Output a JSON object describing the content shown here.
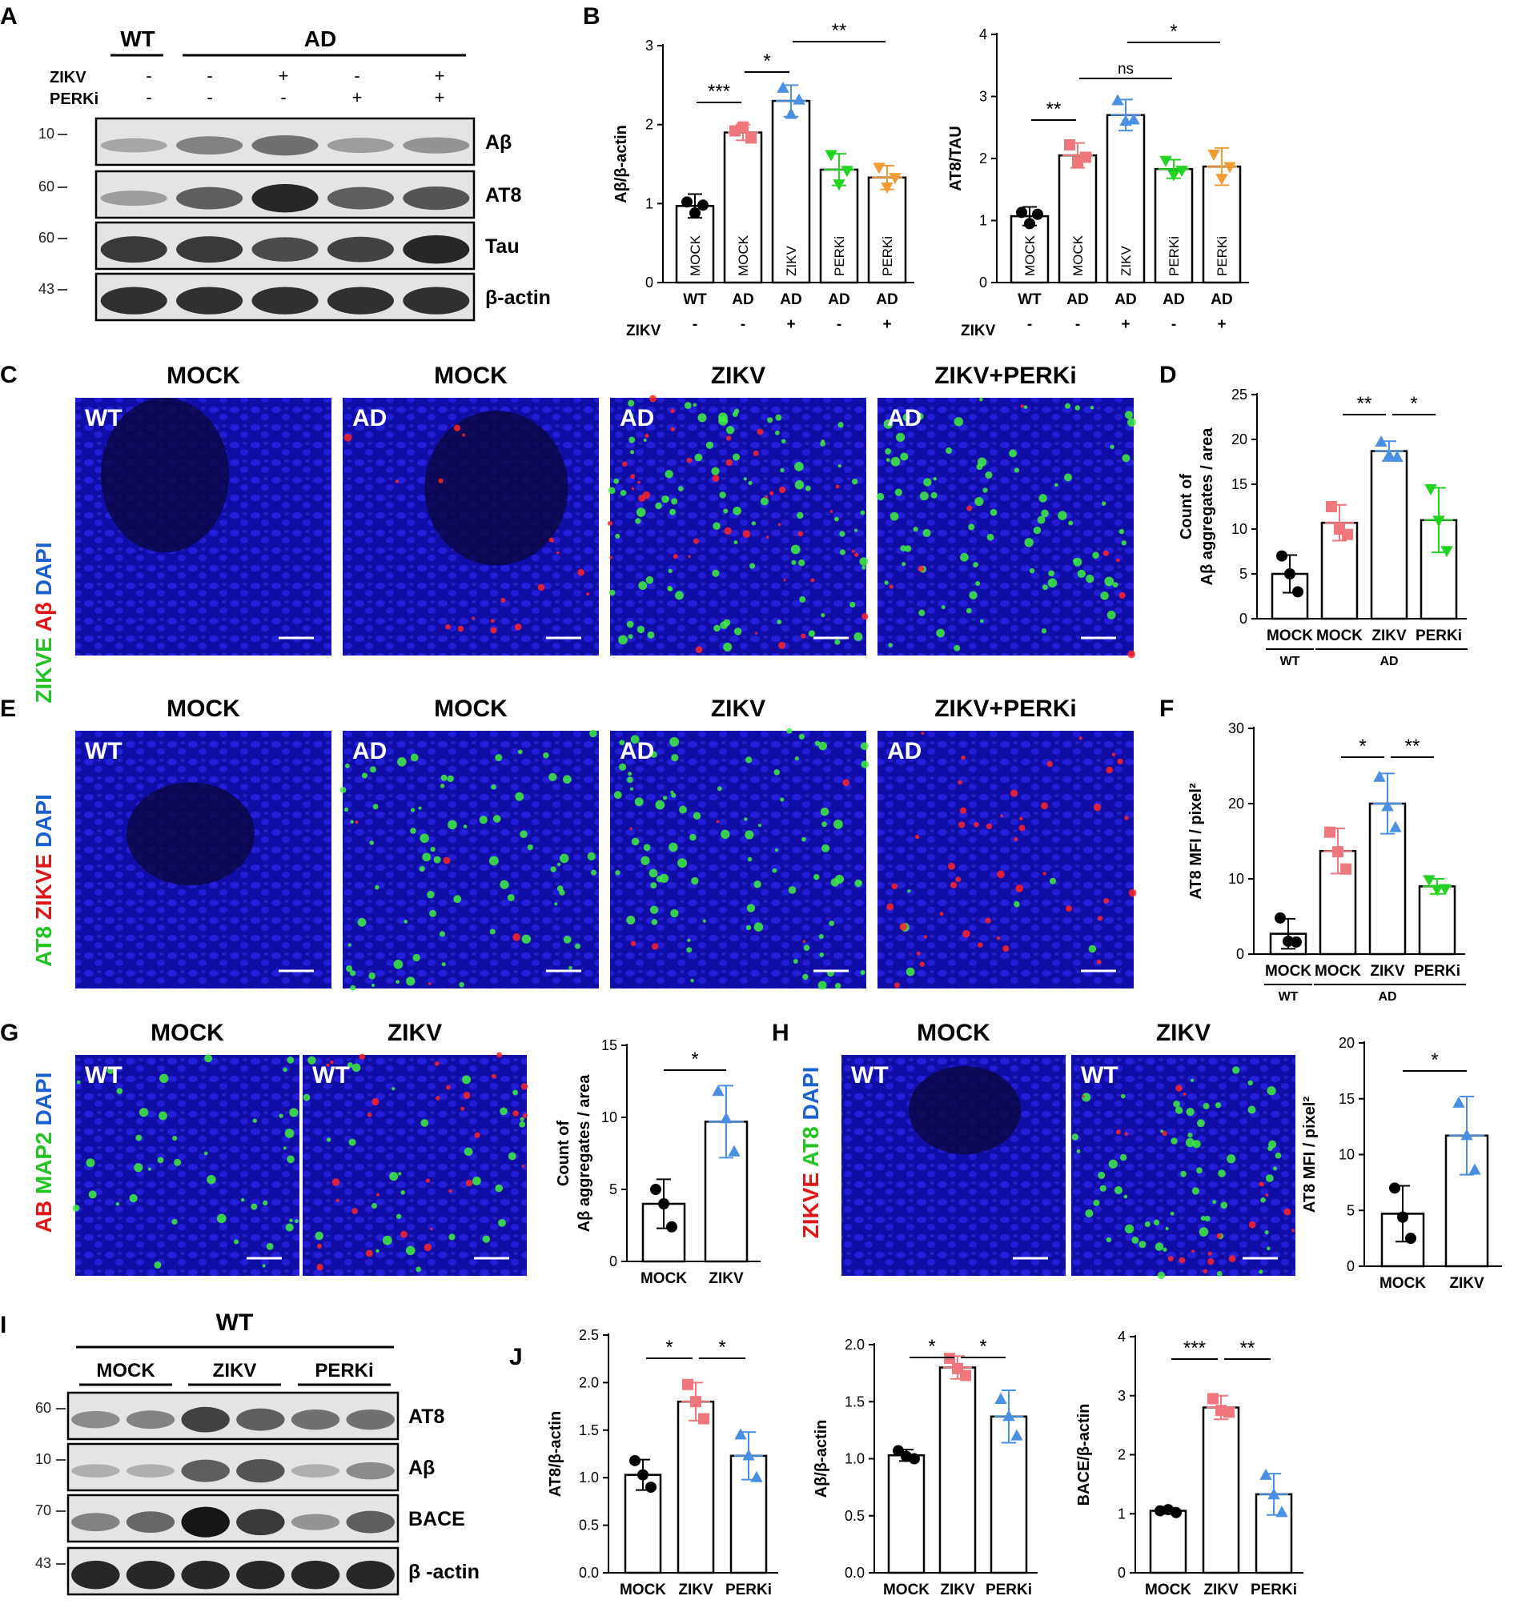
{
  "colors": {
    "WT": "#000000",
    "MOCK": "#f0787c",
    "ZIKV": "#4a90e2",
    "PERKi": "#22d322",
    "PERKi_B": "#f39c34",
    "dapi": "#1a12d8"
  },
  "panelA": {
    "letter": "A",
    "headers": {
      "wt": "WT",
      "ad": "AD"
    },
    "rows": [
      {
        "label": "ZIKV",
        "signs": [
          "-",
          "-",
          "+",
          "-",
          "+"
        ]
      },
      {
        "label": "PERKi",
        "signs": [
          "-",
          "-",
          "-",
          "+",
          "+"
        ]
      }
    ],
    "blots": [
      {
        "label": "Aβ",
        "mw": "10"
      },
      {
        "label": "AT8",
        "mw": "60"
      },
      {
        "label": "Tau",
        "mw": "60"
      },
      {
        "label": "β-actin",
        "mw": "43"
      }
    ]
  },
  "panelB": {
    "letter": "B",
    "zikv_label": "ZIKV"
  },
  "panelC": {
    "letter": "C",
    "stain": [
      "ZIKVE",
      "Aβ",
      "DAPI"
    ],
    "cols": [
      "MOCK",
      "MOCK",
      "ZIKV",
      "ZIKV+PERKi"
    ],
    "tags": [
      "WT",
      "AD",
      "AD",
      "AD"
    ]
  },
  "panelD": {
    "letter": "D",
    "group_wt": "WT",
    "group_ad": "AD"
  },
  "panelE": {
    "letter": "E",
    "stain": [
      "AT8",
      "ZIKVE",
      "DAPI"
    ],
    "cols": [
      "MOCK",
      "MOCK",
      "ZIKV",
      "ZIKV+PERKi"
    ],
    "tags": [
      "WT",
      "AD",
      "AD",
      "AD"
    ]
  },
  "panelF": {
    "letter": "F",
    "group_wt": "WT",
    "group_ad": "AD"
  },
  "panelG": {
    "letter": "G",
    "stain": [
      "AB",
      "MAP2",
      "DAPI"
    ],
    "cols": [
      "MOCK",
      "ZIKV"
    ],
    "tags": [
      "WT",
      "WT"
    ]
  },
  "panelH": {
    "letter": "H",
    "stain": [
      "ZIKVE",
      "AT8",
      "DAPI"
    ],
    "cols": [
      "MOCK",
      "ZIKV"
    ],
    "tags": [
      "WT",
      "WT"
    ]
  },
  "panelI": {
    "letter": "I",
    "header": "WT",
    "groups": [
      "MOCK",
      "ZIKV",
      "PERKi"
    ],
    "blots": [
      {
        "label": "AT8",
        "mw": "60"
      },
      {
        "label": "Aβ",
        "mw": "10"
      },
      {
        "label": "BACE",
        "mw": "70"
      },
      {
        "label": "β -actin",
        "mw": "43"
      }
    ]
  },
  "panelJ": {
    "letter": "J"
  },
  "chart_data": [
    {
      "id": "B1",
      "type": "bar",
      "ylabel": "Aβ/β-actin",
      "ylim": [
        0,
        3
      ],
      "yticks": [
        "0",
        "1",
        "2",
        "3"
      ],
      "categories": [
        "WT",
        "AD",
        "AD",
        "AD",
        "AD"
      ],
      "inbar_labels": [
        "MOCK",
        "MOCK",
        "ZIKV",
        "PERKi",
        "PERKi"
      ],
      "zikv_row": [
        "-",
        "-",
        "+",
        "-",
        "+"
      ],
      "values": [
        0.97,
        1.9,
        2.3,
        1.43,
        1.33
      ],
      "errors": [
        0.15,
        0.1,
        0.2,
        0.2,
        0.15
      ],
      "points": [
        [
          1.02,
          0.88,
          0.98
        ],
        [
          1.92,
          1.97,
          1.83
        ],
        [
          2.46,
          2.13,
          2.31
        ],
        [
          1.62,
          1.25,
          1.42
        ],
        [
          1.46,
          1.21,
          1.33
        ]
      ],
      "point_colors": [
        "#000000",
        "#f0787c",
        "#4a90e2",
        "#22d322",
        "#f39c34"
      ],
      "point_shapes": [
        "circle",
        "square",
        "triangle",
        "tri-down",
        "tri-down"
      ],
      "comparisons": [
        [
          "***",
          0,
          1
        ],
        [
          "*",
          1,
          2
        ],
        [
          "**",
          2,
          4
        ]
      ]
    },
    {
      "id": "B2",
      "type": "bar",
      "ylabel": "AT8/TAU",
      "ylim": [
        0,
        4
      ],
      "yticks": [
        "0",
        "1",
        "2",
        "3",
        "4"
      ],
      "categories": [
        "WT",
        "AD",
        "AD",
        "AD",
        "AD"
      ],
      "inbar_labels": [
        "MOCK",
        "MOCK",
        "ZIKV",
        "PERKi",
        "PERKi"
      ],
      "zikv_row": [
        "-",
        "-",
        "+",
        "-",
        "+"
      ],
      "values": [
        1.07,
        2.05,
        2.7,
        1.83,
        1.87
      ],
      "errors": [
        0.15,
        0.2,
        0.25,
        0.15,
        0.3
      ],
      "points": [
        [
          1.13,
          0.95,
          1.1
        ],
        [
          2.22,
          1.94,
          2.02
        ],
        [
          2.93,
          2.6,
          2.62
        ],
        [
          1.97,
          1.74,
          1.81
        ],
        [
          2.07,
          1.68,
          1.87
        ]
      ],
      "point_colors": [
        "#000000",
        "#f0787c",
        "#4a90e2",
        "#22d322",
        "#f39c34"
      ],
      "point_shapes": [
        "circle",
        "square",
        "triangle",
        "tri-down",
        "tri-down"
      ],
      "comparisons": [
        [
          "**",
          0,
          1
        ],
        [
          "ns",
          1,
          3
        ],
        [
          "*",
          2,
          4
        ]
      ]
    },
    {
      "id": "D",
      "type": "bar",
      "ylabel": "Count of\nAβ aggregates / area",
      "ylim": [
        0,
        25
      ],
      "yticks": [
        "0",
        "5",
        "10",
        "15",
        "20",
        "25"
      ],
      "categories": [
        "MOCK",
        "MOCK",
        "ZIKV",
        "PERKi"
      ],
      "values": [
        5.0,
        10.7,
        18.7,
        11.0
      ],
      "errors": [
        2.1,
        2.0,
        1.1,
        3.6
      ],
      "points": [
        [
          7.0,
          5.0,
          3.0
        ],
        [
          12.5,
          10.0,
          9.4
        ],
        [
          19.7,
          18.2,
          18.0
        ],
        [
          14.5,
          11.0,
          7.6
        ]
      ],
      "point_colors": [
        "#000000",
        "#f0787c",
        "#4a90e2",
        "#22d322"
      ],
      "point_shapes": [
        "circle",
        "square",
        "triangle",
        "tri-down"
      ],
      "comparisons": [
        [
          "**",
          1,
          2
        ],
        [
          "*",
          2,
          3
        ]
      ]
    },
    {
      "id": "F",
      "type": "bar",
      "ylabel": "AT8 MFI / pixel²",
      "ylim": [
        0,
        30
      ],
      "yticks": [
        "0",
        "10",
        "20",
        "30"
      ],
      "categories": [
        "MOCK",
        "MOCK",
        "ZIKV",
        "PERKi"
      ],
      "values": [
        2.7,
        13.7,
        20.0,
        9.0
      ],
      "errors": [
        2.0,
        3.0,
        4.0,
        1.0
      ],
      "points": [
        [
          4.8,
          1.7,
          1.6
        ],
        [
          16.2,
          13.6,
          11.3
        ],
        [
          23.5,
          19.6,
          16.8
        ],
        [
          9.9,
          8.6,
          8.7
        ]
      ],
      "point_colors": [
        "#000000",
        "#f0787c",
        "#4a90e2",
        "#22d322"
      ],
      "point_shapes": [
        "circle",
        "square",
        "triangle",
        "tri-down"
      ],
      "comparisons": [
        [
          "*",
          1,
          2
        ],
        [
          "**",
          2,
          3
        ]
      ]
    },
    {
      "id": "G",
      "type": "bar",
      "ylabel": "Count of\nAβ aggregates / area",
      "ylim": [
        0,
        15
      ],
      "yticks": [
        "0",
        "5",
        "10",
        "15"
      ],
      "categories": [
        "MOCK",
        "ZIKV"
      ],
      "values": [
        4.0,
        9.7
      ],
      "errors": [
        1.7,
        2.5
      ],
      "points": [
        [
          5.0,
          4.0,
          2.4
        ],
        [
          11.8,
          9.9,
          7.6
        ]
      ],
      "point_colors": [
        "#000000",
        "#4a90e2"
      ],
      "point_shapes": [
        "circle",
        "triangle"
      ],
      "comparisons": [
        [
          "*",
          0,
          1
        ]
      ]
    },
    {
      "id": "H",
      "type": "bar",
      "ylabel": "AT8 MFI / pixel²",
      "ylim": [
        0,
        20
      ],
      "yticks": [
        "0",
        "5",
        "10",
        "15",
        "20"
      ],
      "categories": [
        "MOCK",
        "ZIKV"
      ],
      "values": [
        4.7,
        11.7
      ],
      "errors": [
        2.5,
        3.5
      ],
      "points": [
        [
          7.0,
          4.4,
          2.5
        ],
        [
          14.6,
          11.7,
          8.6
        ]
      ],
      "point_colors": [
        "#000000",
        "#4a90e2"
      ],
      "point_shapes": [
        "circle",
        "triangle"
      ],
      "comparisons": [
        [
          "*",
          0,
          1
        ]
      ]
    },
    {
      "id": "J1",
      "type": "bar",
      "ylabel": "AT8/β-actin",
      "ylim": [
        0,
        2.5
      ],
      "yticks": [
        "0.0",
        "0.5",
        "1.0",
        "1.5",
        "2.0",
        "2.5"
      ],
      "categories": [
        "MOCK",
        "ZIKV",
        "PERKi"
      ],
      "values": [
        1.03,
        1.8,
        1.23
      ],
      "errors": [
        0.16,
        0.2,
        0.25
      ],
      "points": [
        [
          1.18,
          1.03,
          0.9
        ],
        [
          1.98,
          1.8,
          1.62
        ],
        [
          1.45,
          1.23,
          1.0
        ]
      ],
      "point_colors": [
        "#000000",
        "#f0787c",
        "#4a90e2"
      ],
      "point_shapes": [
        "circle",
        "square",
        "triangle"
      ],
      "comparisons": [
        [
          "*",
          0,
          1
        ],
        [
          "*",
          1,
          2
        ]
      ]
    },
    {
      "id": "J2",
      "type": "bar",
      "ylabel": "Aβ/β-actin",
      "ylim": [
        0,
        2.0
      ],
      "yticks": [
        "0.0",
        "0.5",
        "1.0",
        "1.5",
        "2.0"
      ],
      "categories": [
        "MOCK",
        "ZIKV",
        "PERKi"
      ],
      "values": [
        1.03,
        1.8,
        1.37
      ],
      "errors": [
        0.05,
        0.1,
        0.23
      ],
      "points": [
        [
          1.07,
          1.02,
          1.0
        ],
        [
          1.88,
          1.79,
          1.73
        ],
        [
          1.52,
          1.37,
          1.2
        ]
      ],
      "point_colors": [
        "#000000",
        "#f0787c",
        "#4a90e2"
      ],
      "point_shapes": [
        "circle",
        "square",
        "triangle"
      ],
      "comparisons": [
        [
          "*",
          0,
          1
        ],
        [
          "*",
          1,
          2
        ]
      ]
    },
    {
      "id": "J3",
      "type": "bar",
      "ylabel": "BACE/β-actin",
      "ylim": [
        0,
        4
      ],
      "yticks": [
        "0",
        "1",
        "2",
        "3",
        "4"
      ],
      "categories": [
        "MOCK",
        "ZIKV",
        "PERKi"
      ],
      "values": [
        1.05,
        2.8,
        1.33
      ],
      "errors": [
        0.05,
        0.2,
        0.35
      ],
      "points": [
        [
          1.05,
          1.07,
          1.02
        ],
        [
          2.95,
          2.75,
          2.72
        ],
        [
          1.65,
          1.32,
          1.02
        ]
      ],
      "point_colors": [
        "#000000",
        "#f0787c",
        "#4a90e2"
      ],
      "point_shapes": [
        "circle",
        "square",
        "triangle"
      ],
      "comparisons": [
        [
          "***",
          0,
          1
        ],
        [
          "**",
          1,
          2
        ]
      ]
    }
  ]
}
